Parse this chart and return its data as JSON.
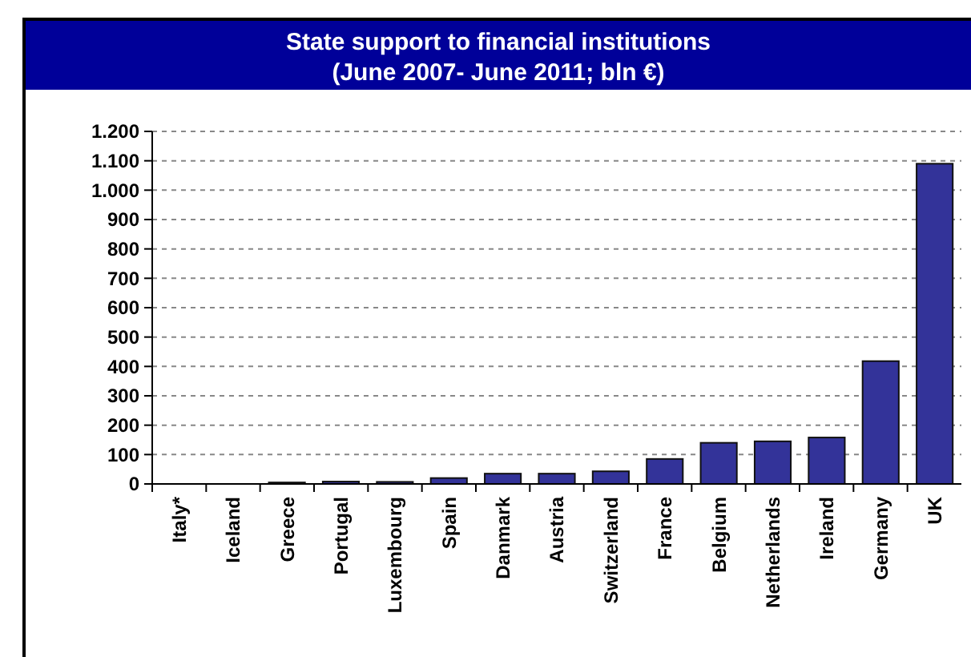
{
  "chart_data": {
    "type": "bar",
    "title": "State support to financial institutions",
    "subtitle": "(June 2007- June 2011; bln €)",
    "categories": [
      "Italy*",
      "Iceland",
      "Greece",
      "Portugal",
      "Luxembourg",
      "Spain",
      "Danmark",
      "Austria",
      "Switzerland",
      "France",
      "Belgium",
      "Netherlands",
      "Ireland",
      "Germany",
      "UK"
    ],
    "values": [
      0,
      0,
      5,
      8,
      7,
      20,
      35,
      35,
      43,
      85,
      140,
      145,
      158,
      418,
      1090
    ],
    "color": "#333399",
    "ylim": [
      0,
      1200
    ],
    "yticks": [
      0,
      100,
      200,
      300,
      400,
      500,
      600,
      700,
      800,
      900,
      {
        "value": 1000,
        "label": "1.000"
      },
      {
        "value": 1100,
        "label": "1.100"
      },
      {
        "value": 1200,
        "label": "1.200"
      }
    ],
    "grid": "y"
  }
}
